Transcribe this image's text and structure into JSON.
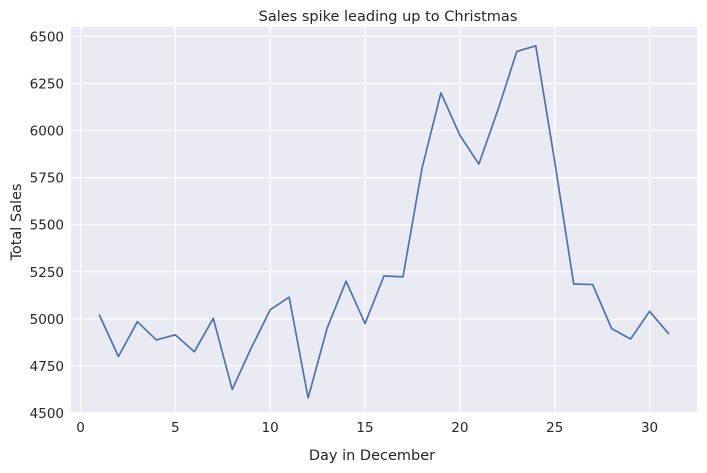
{
  "chart_data": {
    "type": "line",
    "title": "Sales spike leading up to Christmas",
    "xlabel": "Day in December",
    "ylabel": "Total Sales",
    "xlim": [
      -0.5,
      32.5
    ],
    "ylim": [
      4500,
      6550
    ],
    "xticks": [
      0,
      5,
      10,
      15,
      20,
      25,
      30
    ],
    "yticks": [
      4500,
      4750,
      5000,
      5250,
      5500,
      5750,
      6000,
      6250,
      6500
    ],
    "grid": true,
    "legend": "none",
    "colors": {
      "line": "#4c72b0",
      "background": "#eaeaf2",
      "grid": "#ffffff"
    },
    "series": [
      {
        "x": [
          1,
          2,
          3,
          4,
          5,
          6,
          7,
          8,
          9,
          10,
          11,
          12,
          13,
          14,
          15,
          16,
          17,
          18,
          19,
          20,
          21,
          22,
          23,
          24,
          25,
          26,
          27,
          28,
          29,
          30,
          31
        ],
        "values": [
          5020,
          4800,
          4985,
          4888,
          4915,
          4825,
          5003,
          4625,
          4845,
          5048,
          5115,
          4580,
          4950,
          5200,
          4975,
          5228,
          5223,
          5798,
          6200,
          5975,
          5822,
          6108,
          6420,
          6450,
          5835,
          5185,
          5182,
          4948,
          4893,
          5040,
          4922
        ]
      }
    ]
  }
}
